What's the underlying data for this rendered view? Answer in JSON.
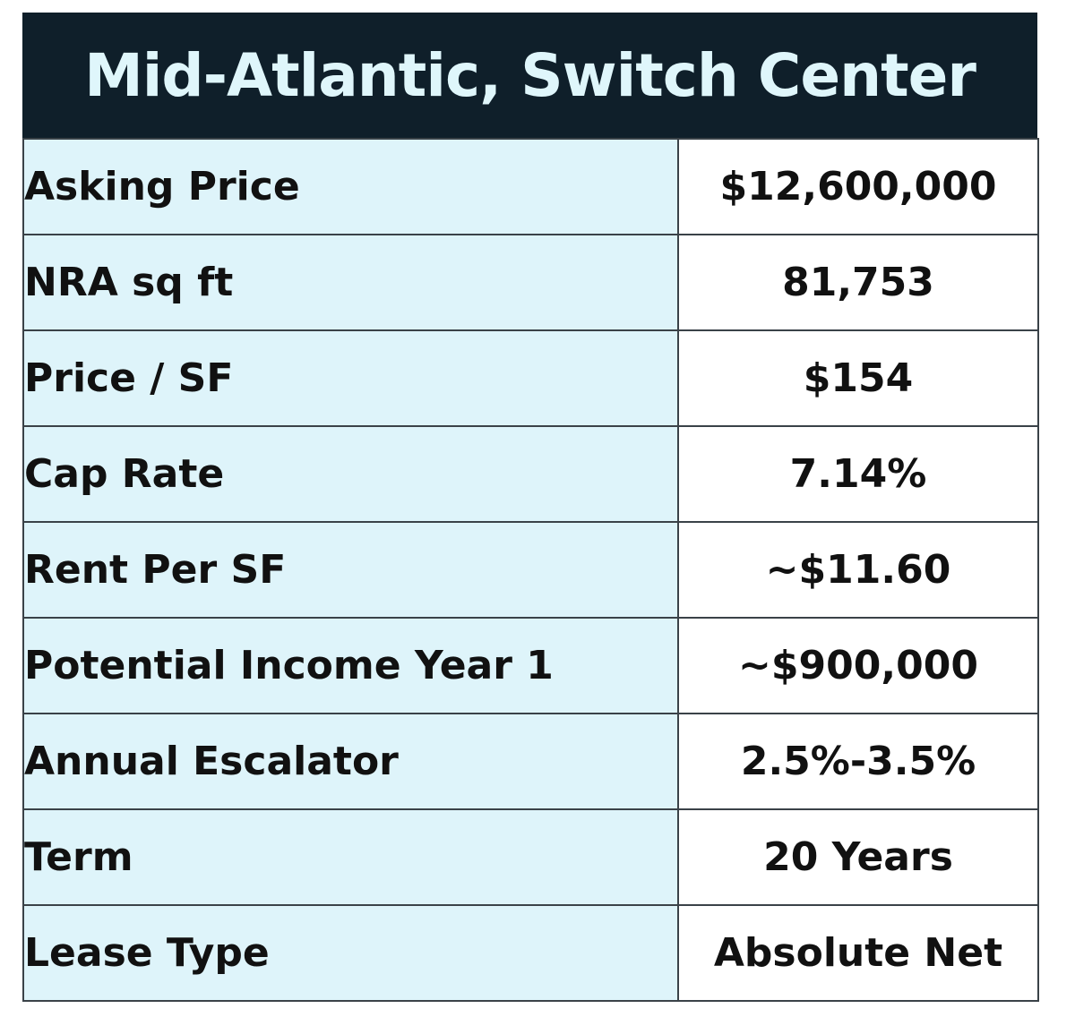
{
  "title": "Mid-Atlantic, Switch Center",
  "colors": {
    "title_background": "#0f1f2a",
    "title_text": "#dff6fb",
    "label_background": "#def4fa",
    "value_background": "#ffffff",
    "border": "#3a4248"
  },
  "rows": [
    {
      "label": "Asking Price",
      "value": "$12,600,000"
    },
    {
      "label": "NRA sq ft",
      "value": "81,753"
    },
    {
      "label": "Price / SF",
      "value": "$154"
    },
    {
      "label": "Cap Rate",
      "value": "7.14%"
    },
    {
      "label": "Rent Per SF",
      "value": "~$11.60"
    },
    {
      "label": "Potential Income Year 1",
      "value": "~$900,000"
    },
    {
      "label": "Annual Escalator",
      "value": "2.5%-3.5%"
    },
    {
      "label": "Term",
      "value": "20 Years"
    },
    {
      "label": "Lease Type",
      "value": "Absolute Net"
    }
  ]
}
